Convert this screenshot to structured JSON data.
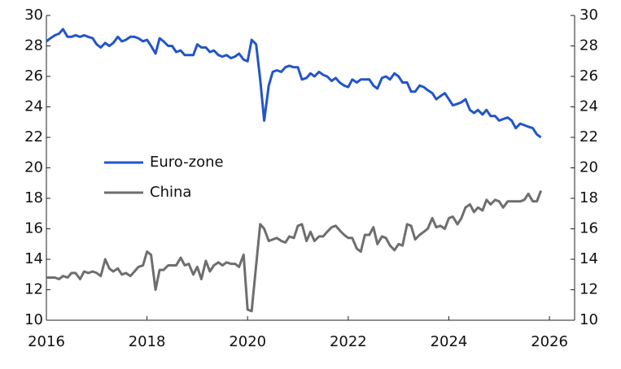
{
  "chart_data": {
    "type": "line",
    "x": [
      2016,
      2016.08,
      2016.17,
      2016.25,
      2016.33,
      2016.42,
      2016.5,
      2016.58,
      2016.67,
      2016.75,
      2016.83,
      2016.92,
      2017,
      2017.08,
      2017.17,
      2017.25,
      2017.33,
      2017.42,
      2017.5,
      2017.58,
      2017.67,
      2017.75,
      2017.83,
      2017.92,
      2018,
      2018.08,
      2018.17,
      2018.25,
      2018.33,
      2018.42,
      2018.5,
      2018.58,
      2018.67,
      2018.75,
      2018.83,
      2018.92,
      2019,
      2019.08,
      2019.17,
      2019.25,
      2019.33,
      2019.42,
      2019.5,
      2019.58,
      2019.67,
      2019.75,
      2019.83,
      2019.92,
      2020,
      2020.08,
      2020.17,
      2020.25,
      2020.33,
      2020.42,
      2020.5,
      2020.58,
      2020.67,
      2020.75,
      2020.83,
      2020.92,
      2021,
      2021.08,
      2021.17,
      2021.25,
      2021.33,
      2021.42,
      2021.5,
      2021.58,
      2021.67,
      2021.75,
      2021.83,
      2021.92,
      2022,
      2022.08,
      2022.17,
      2022.25,
      2022.33,
      2022.42,
      2022.5,
      2022.58,
      2022.67,
      2022.75,
      2022.83,
      2022.92,
      2023,
      2023.08,
      2023.17,
      2023.25,
      2023.33,
      2023.42,
      2023.5,
      2023.58,
      2023.67,
      2023.75,
      2023.83,
      2023.92,
      2024,
      2024.08,
      2024.17,
      2024.25,
      2024.33,
      2024.42,
      2024.5,
      2024.58,
      2024.67,
      2024.75,
      2024.83,
      2024.92,
      2025,
      2025.08,
      2025.17,
      2025.25,
      2025.33,
      2025.42,
      2025.5,
      2025.58,
      2025.67,
      2025.75,
      2025.83
    ],
    "series": [
      {
        "name": "Euro-zone",
        "color": "#2355c8",
        "values": [
          28.3,
          28.5,
          28.7,
          28.8,
          29.1,
          28.6,
          28.6,
          28.7,
          28.6,
          28.7,
          28.6,
          28.5,
          28.1,
          27.9,
          28.2,
          28.0,
          28.2,
          28.6,
          28.3,
          28.4,
          28.6,
          28.6,
          28.5,
          28.3,
          28.4,
          28.0,
          27.5,
          28.5,
          28.3,
          28.0,
          28.0,
          27.6,
          27.7,
          27.4,
          27.4,
          27.4,
          28.1,
          27.9,
          27.9,
          27.6,
          27.7,
          27.4,
          27.3,
          27.4,
          27.2,
          27.3,
          27.5,
          27.1,
          27.0,
          28.4,
          28.1,
          25.8,
          23.1,
          25.4,
          26.3,
          26.4,
          26.3,
          26.6,
          26.7,
          26.6,
          26.6,
          25.8,
          25.9,
          26.2,
          26.0,
          26.3,
          26.1,
          26.0,
          25.7,
          25.9,
          25.6,
          25.4,
          25.3,
          25.8,
          25.6,
          25.8,
          25.8,
          25.8,
          25.4,
          25.2,
          25.9,
          26.0,
          25.8,
          26.2,
          26.0,
          25.6,
          25.6,
          25.0,
          25.0,
          25.4,
          25.3,
          25.1,
          24.9,
          24.5,
          24.7,
          24.9,
          24.5,
          24.1,
          24.2,
          24.3,
          24.5,
          23.8,
          23.6,
          23.8,
          23.5,
          23.8,
          23.4,
          23.4,
          23.1,
          23.2,
          23.3,
          23.1,
          22.6,
          22.9,
          22.8,
          22.7,
          22.6,
          22.2,
          22.0
        ]
      },
      {
        "name": "China",
        "color": "#6e6e6e",
        "values": [
          12.8,
          12.8,
          12.8,
          12.7,
          12.9,
          12.8,
          13.1,
          13.1,
          12.7,
          13.2,
          13.1,
          13.2,
          13.1,
          12.9,
          14.0,
          13.4,
          13.2,
          13.4,
          13.0,
          13.1,
          12.9,
          13.2,
          13.5,
          13.6,
          14.5,
          14.3,
          12.0,
          13.3,
          13.3,
          13.6,
          13.6,
          13.6,
          14.1,
          13.6,
          13.7,
          13.0,
          13.5,
          12.7,
          13.9,
          13.2,
          13.6,
          13.8,
          13.6,
          13.8,
          13.7,
          13.7,
          13.5,
          14.3,
          10.7,
          10.6,
          13.6,
          16.3,
          16.0,
          15.2,
          15.3,
          15.4,
          15.2,
          15.1,
          15.5,
          15.4,
          16.2,
          16.3,
          15.2,
          15.8,
          15.2,
          15.5,
          15.5,
          15.8,
          16.1,
          16.2,
          15.9,
          15.6,
          15.4,
          15.4,
          14.7,
          14.5,
          15.6,
          15.6,
          16.1,
          15.0,
          15.5,
          15.4,
          14.9,
          14.6,
          15.0,
          14.9,
          16.3,
          16.2,
          15.3,
          15.6,
          15.8,
          16.0,
          16.7,
          16.1,
          16.2,
          16.0,
          16.7,
          16.8,
          16.3,
          16.7,
          17.4,
          17.6,
          17.1,
          17.4,
          17.2,
          17.9,
          17.6,
          17.9,
          17.8,
          17.4,
          17.8,
          17.8,
          17.8,
          17.8,
          17.9,
          18.3,
          17.8,
          17.8,
          18.5
        ]
      }
    ],
    "xlim": [
      2016,
      2026.5
    ],
    "xticks": [
      2016,
      2018,
      2020,
      2022,
      2024,
      2026
    ],
    "ylim": [
      10,
      30
    ],
    "yticks": [
      10,
      12,
      14,
      16,
      18,
      20,
      22,
      24,
      26,
      28,
      30
    ],
    "y2lim": [
      10,
      30
    ],
    "y2ticks": [
      10,
      12,
      14,
      16,
      18,
      20,
      22,
      24,
      26,
      28,
      30
    ],
    "legend": "center left"
  }
}
